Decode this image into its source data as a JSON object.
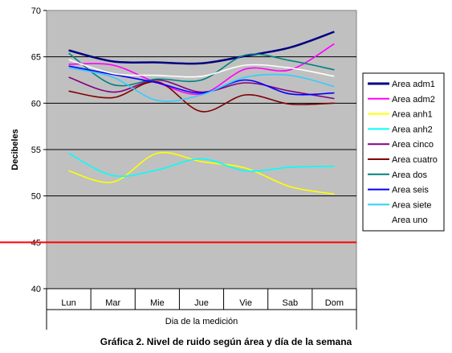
{
  "caption": "Gráfica 2. Nivel de ruido según área y día de la semana",
  "chart_data": {
    "type": "line",
    "xlabel": "Dia de la medición",
    "ylabel": "Decibeles",
    "ylim": [
      40,
      70
    ],
    "yticks": [
      40,
      45,
      50,
      55,
      60,
      65,
      70
    ],
    "categories": [
      "Lun",
      "Mar",
      "Mie",
      "Jue",
      "Vie",
      "Sab",
      "Dom"
    ],
    "plot_background": "#c0c0c0",
    "grid": true,
    "legend_position": "right",
    "reference_line": {
      "value": 45,
      "color": "#ff0000"
    },
    "series": [
      {
        "name": "Area adm1",
        "color": "#000080",
        "values": [
          65.7,
          64.5,
          64.4,
          64.3,
          65.1,
          66.0,
          67.7
        ]
      },
      {
        "name": "Area adm2",
        "color": "#ff00ff",
        "values": [
          64.2,
          64.1,
          62.2,
          61.0,
          63.7,
          63.6,
          66.4
        ]
      },
      {
        "name": "Area anh1",
        "color": "#ffff00",
        "values": [
          52.7,
          51.5,
          54.6,
          53.7,
          53.0,
          51.0,
          50.2
        ]
      },
      {
        "name": "Area anh2",
        "color": "#00ffff",
        "values": [
          54.6,
          52.2,
          52.8,
          54.0,
          52.7,
          53.1,
          53.2
        ]
      },
      {
        "name": "Area cinco",
        "color": "#800080",
        "values": [
          62.8,
          61.2,
          62.5,
          61.2,
          62.2,
          61.3,
          60.5
        ]
      },
      {
        "name": "Area cuatro",
        "color": "#800000",
        "values": [
          61.3,
          60.6,
          62.3,
          59.1,
          60.9,
          59.9,
          60.0
        ]
      },
      {
        "name": "Area dos",
        "color": "#008080",
        "values": [
          65.4,
          62.0,
          62.6,
          62.5,
          65.2,
          64.6,
          63.6
        ]
      },
      {
        "name": "Area seis",
        "color": "#0000ff",
        "values": [
          64.0,
          63.1,
          62.2,
          61.1,
          62.5,
          61.0,
          61.1
        ]
      },
      {
        "name": "Area siete",
        "color": "#33ccff",
        "values": [
          63.8,
          62.8,
          60.3,
          60.9,
          62.8,
          63.0,
          61.8
        ]
      },
      {
        "name": "Area uno",
        "color": "#ffffff",
        "values": [
          64.7,
          63.2,
          63.0,
          62.9,
          64.1,
          63.8,
          62.9
        ]
      }
    ]
  }
}
